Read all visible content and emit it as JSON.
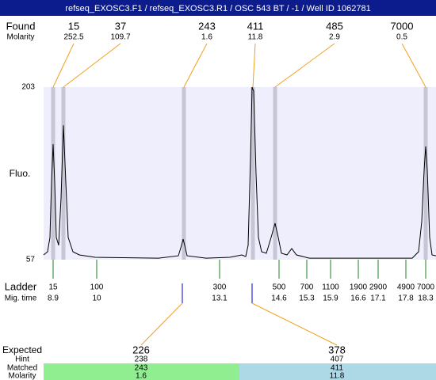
{
  "chart_data": {
    "type": "line",
    "title": "refseq_EXOSC3.F1 / refseq_EXOSC3.R1 / OSC 543 BT / -1 / Well ID 1062781",
    "ylabel": "Fluo.",
    "ylim": [
      57,
      203
    ],
    "yticks": [
      203,
      57
    ],
    "xlim": [
      8.66,
      18.56
    ],
    "color": "#000000",
    "x": [
      8.66,
      8.76,
      8.82,
      8.86,
      8.9,
      8.94,
      8.98,
      9.04,
      9.1,
      9.16,
      9.22,
      9.28,
      9.4,
      9.56,
      9.96,
      11.56,
      12.06,
      12.14,
      12.18,
      12.22,
      12.28,
      12.76,
      13.36,
      13.66,
      13.76,
      13.82,
      13.88,
      13.92,
      13.96,
      14.02,
      14.08,
      14.16,
      14.28,
      14.4,
      14.5,
      14.58,
      14.66,
      14.8,
      14.92,
      15.04,
      15.36,
      16.56,
      17.96,
      18.12,
      18.2,
      18.26,
      18.3,
      18.34,
      18.4,
      18.46,
      18.56
    ],
    "values": [
      61.0,
      63.7,
      75.8,
      122.6,
      154.8,
      122.6,
      75.8,
      69.1,
      109.2,
      170.8,
      122.6,
      75.8,
      63.7,
      61.0,
      59.0,
      58.3,
      60.3,
      69.1,
      74.4,
      69.1,
      60.3,
      58.3,
      59.0,
      61.0,
      59.7,
      69.1,
      142.7,
      203,
      199.6,
      129.3,
      75.8,
      63.7,
      62.4,
      75.8,
      87.8,
      75.8,
      62.4,
      61.0,
      66.4,
      61.0,
      58.3,
      58.3,
      58.3,
      63.7,
      89.1,
      132.7,
      152.8,
      132.7,
      75.8,
      61.0,
      60.3
    ],
    "found": {
      "label": "Found",
      "molarity_label": "Molarity",
      "sizes": [
        15,
        37,
        243,
        411,
        485,
        7000
      ],
      "molarity": [
        252.5,
        109.7,
        1.6,
        11.8,
        2.9,
        0.5
      ],
      "times": [
        8.9,
        9.16,
        12.2,
        13.94,
        14.5,
        18.3
      ]
    },
    "ladder": {
      "label": "Ladder",
      "time_label": "Mig. time",
      "sizes": [
        15,
        100,
        300,
        500,
        700,
        1100,
        1900,
        2900,
        4900,
        7000
      ],
      "times": [
        8.9,
        10,
        13.1,
        14.6,
        15.3,
        15.9,
        16.6,
        17.1,
        17.8,
        18.3
      ]
    },
    "expected": {
      "label": "Expected",
      "hint_label": "Hint",
      "matched_label": "Matched",
      "molarity_label": "Molarity",
      "sizes": [
        226,
        378
      ],
      "hint": [
        238,
        407
      ],
      "matched": [
        243,
        411
      ],
      "molarity": [
        1.6,
        11.8
      ],
      "times": [
        12.16,
        13.92
      ],
      "colors": [
        "#90ee90",
        "#add8e6"
      ]
    }
  }
}
